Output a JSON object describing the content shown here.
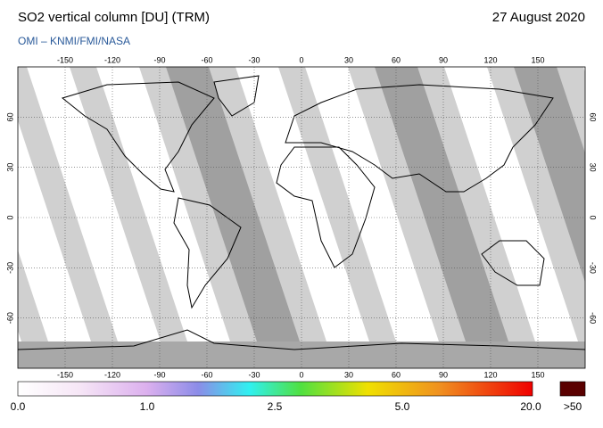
{
  "header": {
    "title": "SO2 vertical column [DU] (TRM)",
    "credit": "OMI  –  KNMI/FMI/NASA",
    "date": "27 August 2020"
  },
  "map": {
    "lon_ticks": [
      -150,
      -120,
      -90,
      -60,
      -30,
      0,
      30,
      60,
      90,
      120,
      150
    ],
    "lat_ticks": [
      60,
      30,
      0,
      -30,
      -60
    ]
  },
  "colorbar": {
    "labels": [
      "0.0",
      "1.0",
      "2.5",
      "5.0",
      "20.0",
      ">50"
    ]
  }
}
